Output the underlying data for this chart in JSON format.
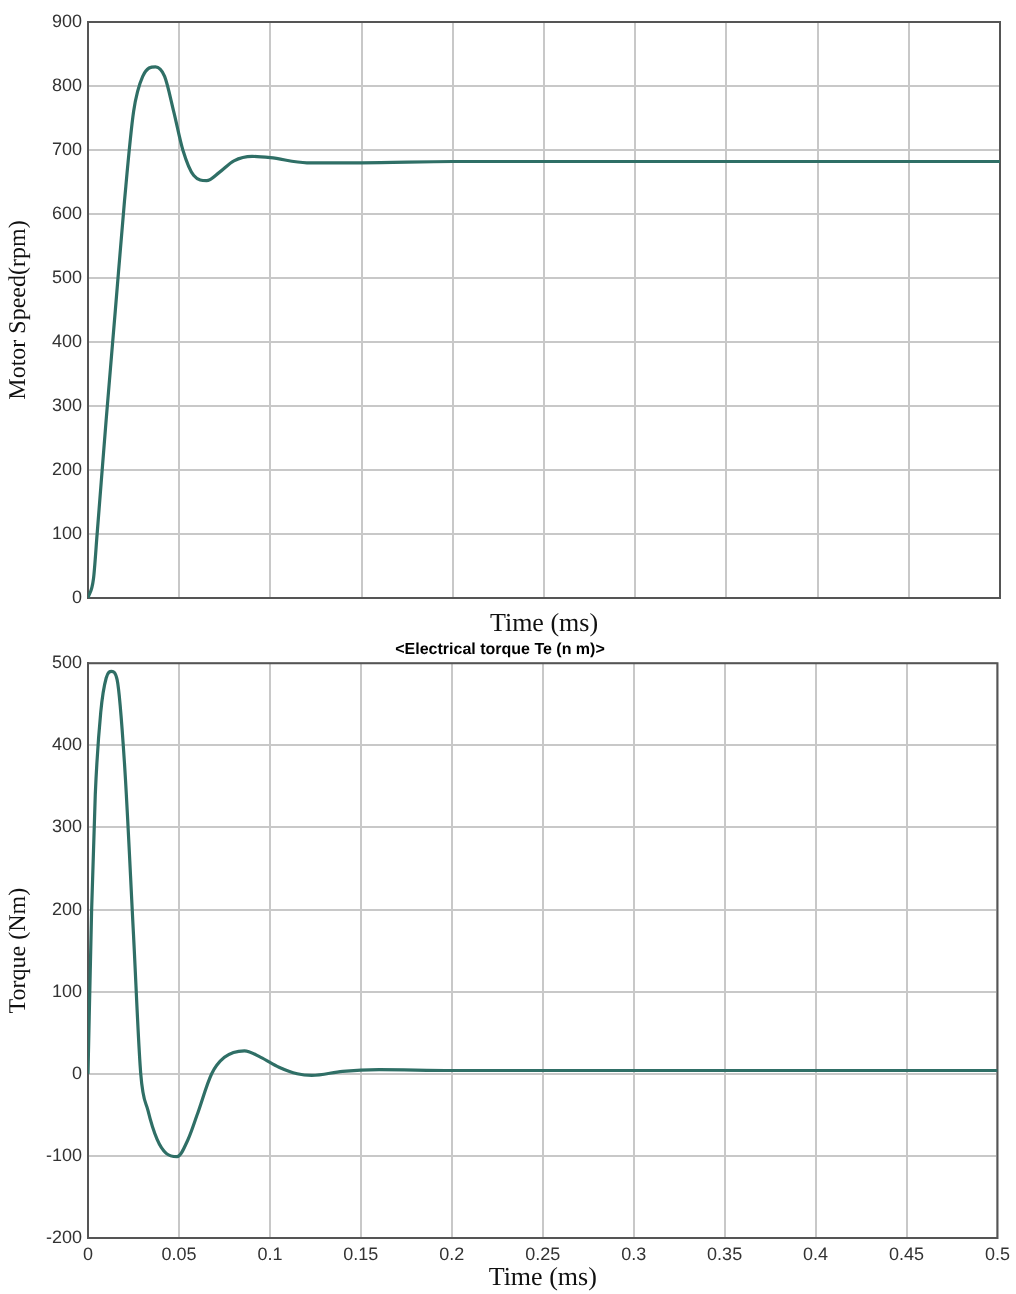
{
  "chart_data": [
    {
      "type": "line",
      "xlabel": "Time (ms)",
      "ylabel": "Motor Speed(rpm)",
      "xlim": [
        0,
        0.5
      ],
      "xticks": [
        0,
        0.05,
        0.1,
        0.15,
        0.2,
        0.25,
        0.3,
        0.35,
        0.4,
        0.45,
        0.5
      ],
      "ylim": [
        0,
        900
      ],
      "yticks": [
        0,
        100,
        200,
        300,
        400,
        500,
        600,
        700,
        800,
        900
      ],
      "grid": true,
      "tick_labels": "y",
      "line_style": "solid",
      "marker": "none",
      "series": [
        {
          "color": "#2f6f66",
          "x": [
            0,
            0.003,
            0.005,
            0.01,
            0.015,
            0.02,
            0.025,
            0.03,
            0.037,
            0.042,
            0.047,
            0.052,
            0.058,
            0.065,
            0.072,
            0.08,
            0.09,
            0.1,
            0.12,
            0.15,
            0.2,
            0.5
          ],
          "values": [
            0,
            30,
            100,
            280,
            450,
            620,
            760,
            815,
            830,
            815,
            760,
            700,
            660,
            652,
            665,
            683,
            690,
            688,
            680,
            680,
            682,
            682
          ]
        }
      ]
    },
    {
      "type": "line",
      "title": "<Electrical torque Te (n m)>",
      "xlabel": "Time (ms)",
      "ylabel": "Torque (Nm)",
      "xlim": [
        0,
        0.5
      ],
      "xticks": [
        0,
        0.05,
        0.1,
        0.15,
        0.2,
        0.25,
        0.3,
        0.35,
        0.4,
        0.45,
        0.5
      ],
      "ylim": [
        -200,
        500
      ],
      "yticks": [
        -200,
        -100,
        0,
        100,
        200,
        300,
        400,
        500
      ],
      "grid": true,
      "line_style": "solid",
      "marker": "none",
      "series": [
        {
          "color": "#2f6f66",
          "x": [
            0,
            0.002,
            0.004,
            0.007,
            0.01,
            0.013,
            0.016,
            0.02,
            0.025,
            0.029,
            0.033,
            0.038,
            0.043,
            0.049,
            0.055,
            0.06,
            0.068,
            0.075,
            0.086,
            0.095,
            0.105,
            0.115,
            0.123,
            0.14,
            0.16,
            0.2,
            0.5
          ],
          "values": [
            0,
            200,
            340,
            440,
            482,
            490,
            480,
            380,
            170,
            0,
            -45,
            -80,
            -97,
            -101,
            -80,
            -50,
            0,
            20,
            28,
            20,
            8,
            0,
            -2,
            3,
            5,
            4,
            4
          ]
        }
      ]
    }
  ]
}
